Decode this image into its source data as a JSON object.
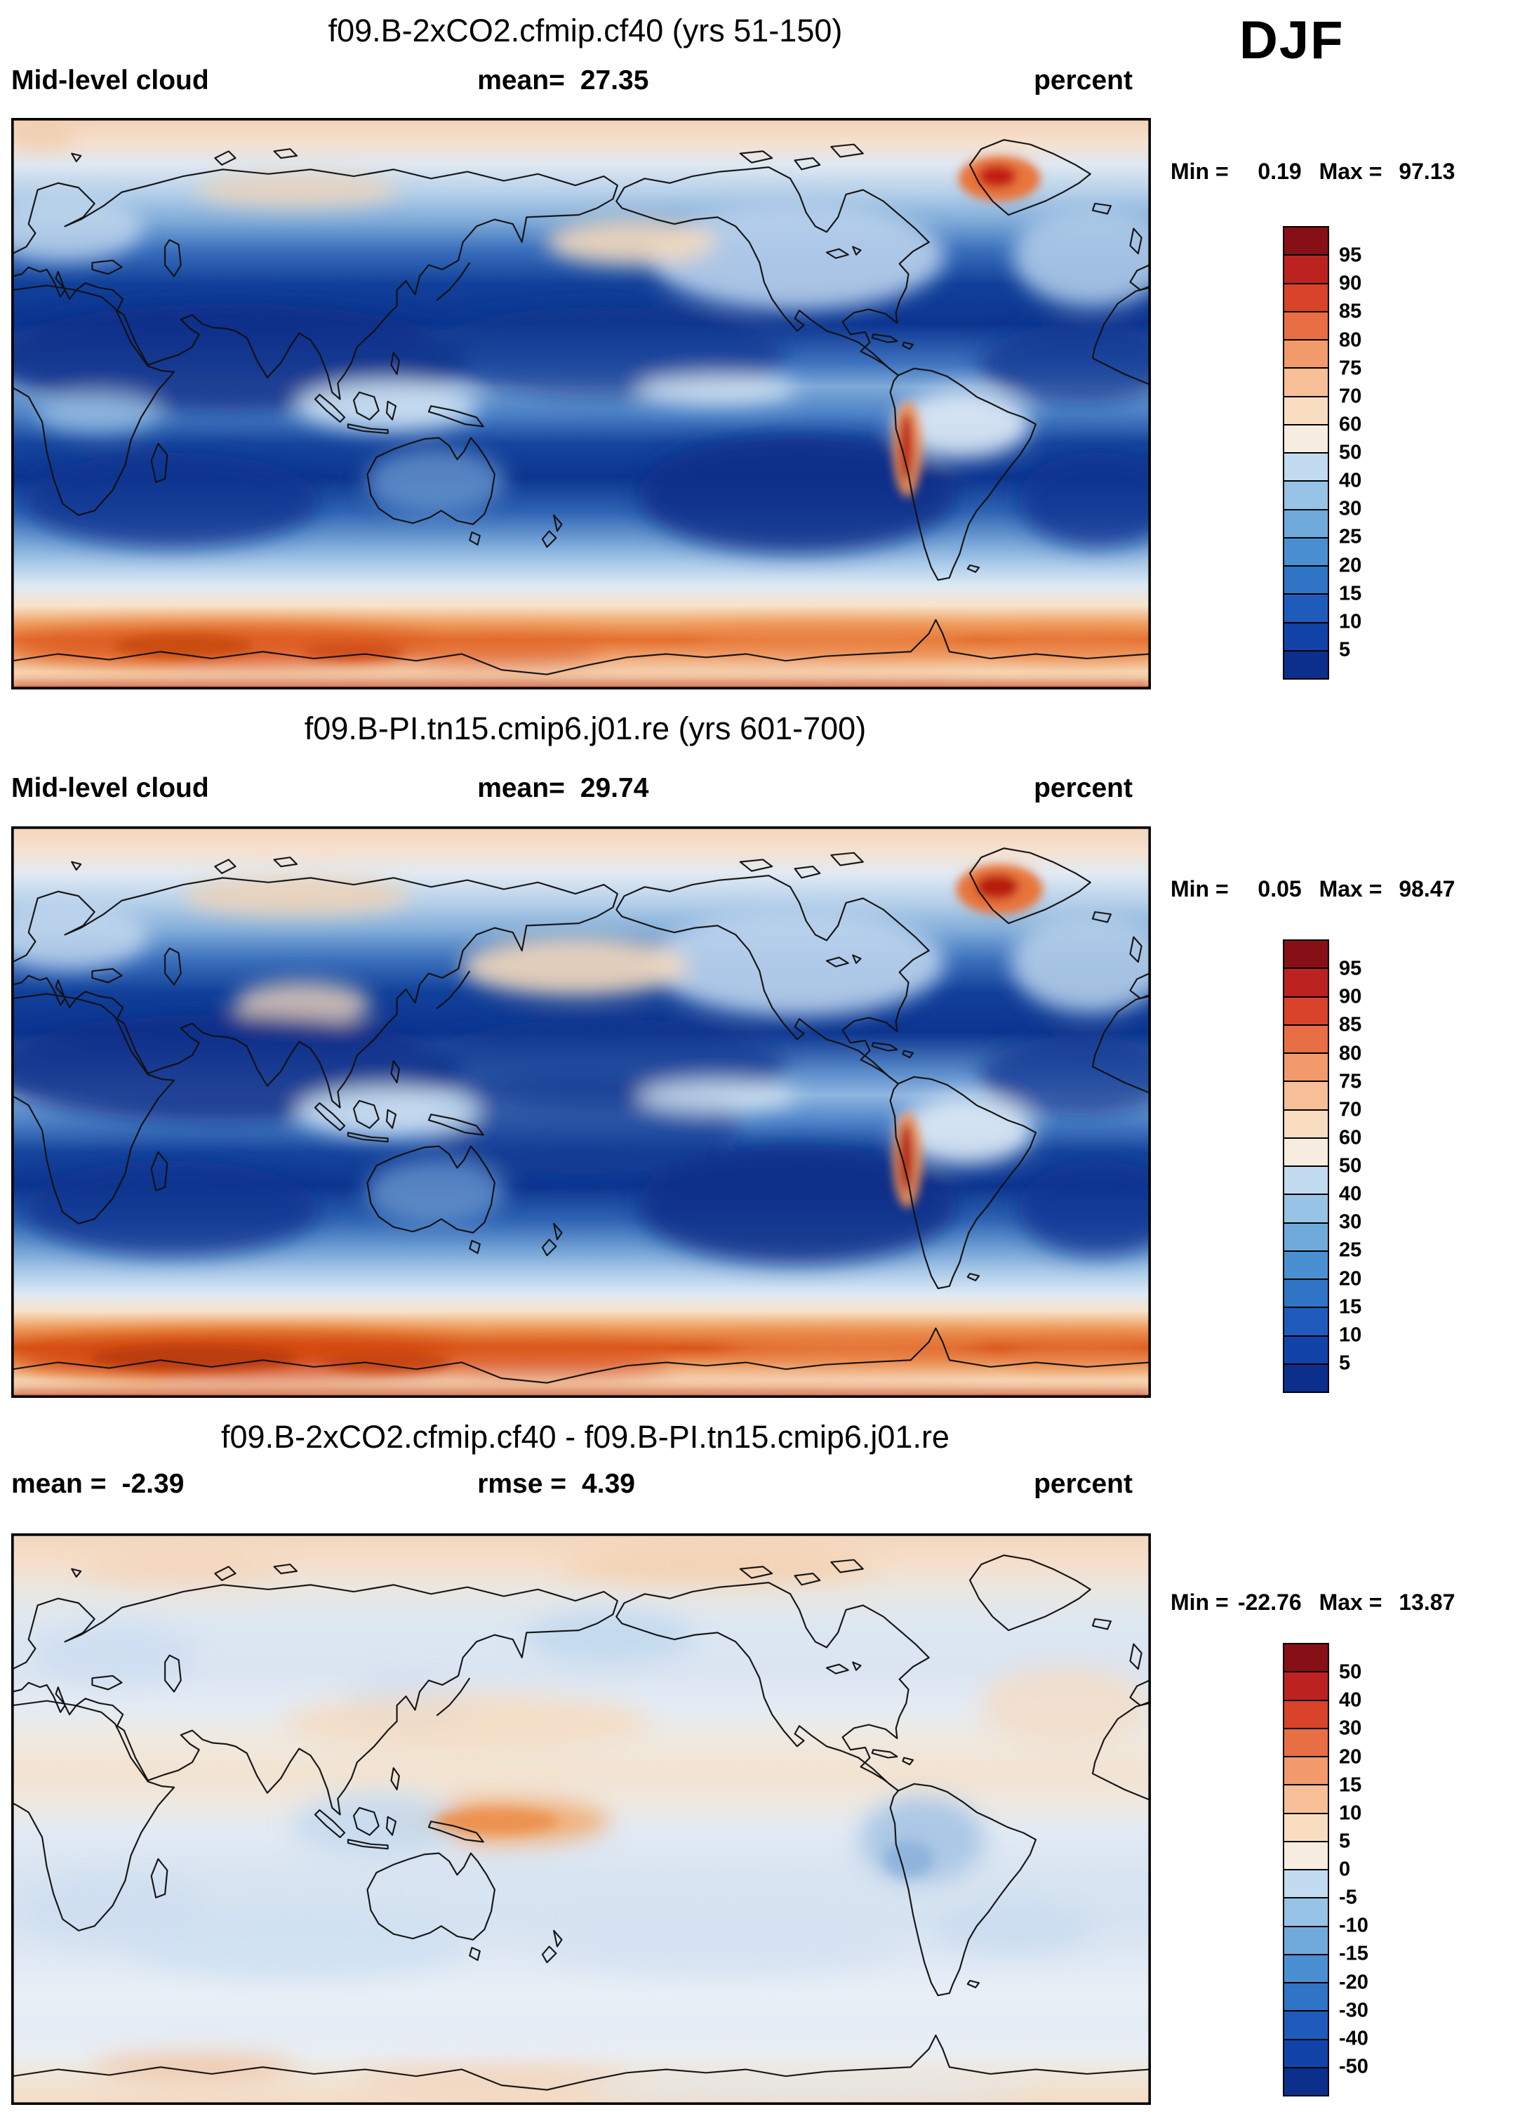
{
  "season": "DJF",
  "palette_bottom_to_top": [
    "#0b2f8a",
    "#1243a8",
    "#1f5bba",
    "#2f74c5",
    "#4a8fd1",
    "#6faadb",
    "#97c4e6",
    "#c2dbf0",
    "#f7ece0",
    "#f9ddc0",
    "#f7bf97",
    "#f29a6b",
    "#e86e43",
    "#d8432a",
    "#bc2320",
    "#871016"
  ],
  "chart_data": [
    {
      "type": "filled-contour-map",
      "title": "f09.B-2xCO2.cfmip.cf40 (yrs 51-150)",
      "variable": "Mid-level cloud",
      "units": "percent",
      "stats": {
        "left_label": "Mid-level cloud",
        "left_value": "",
        "center_label": "mean=",
        "center_value": "27.35"
      },
      "min_label": "Min =",
      "min_value": "0.19",
      "max_label": "Max =",
      "max_value": "97.13",
      "colorbar_ticks": [
        "95",
        "90",
        "85",
        "80",
        "75",
        "70",
        "60",
        "50",
        "40",
        "30",
        "25",
        "20",
        "15",
        "10",
        "5"
      ],
      "contour_levels": [
        5,
        10,
        15,
        20,
        25,
        30,
        40,
        50,
        60,
        70,
        75,
        80,
        85,
        90,
        95
      ]
    },
    {
      "type": "filled-contour-map",
      "title": "f09.B-PI.tn15.cmip6.j01.re (yrs 601-700)",
      "variable": "Mid-level cloud",
      "units": "percent",
      "stats": {
        "left_label": "Mid-level cloud",
        "left_value": "",
        "center_label": "mean=",
        "center_value": "29.74"
      },
      "min_label": "Min =",
      "min_value": "0.05",
      "max_label": "Max =",
      "max_value": "98.47",
      "colorbar_ticks": [
        "95",
        "90",
        "85",
        "80",
        "75",
        "70",
        "60",
        "50",
        "40",
        "30",
        "25",
        "20",
        "15",
        "10",
        "5"
      ],
      "contour_levels": [
        5,
        10,
        15,
        20,
        25,
        30,
        40,
        50,
        60,
        70,
        75,
        80,
        85,
        90,
        95
      ]
    },
    {
      "type": "filled-contour-difference-map",
      "title": "f09.B-2xCO2.cfmip.cf40 - f09.B-PI.tn15.cmip6.j01.re",
      "variable": "Mid-level cloud",
      "units": "percent",
      "stats": {
        "left_label": "mean =",
        "left_value": "-2.39",
        "center_label": "rmse =",
        "center_value": "4.39"
      },
      "min_label": "Min =",
      "min_value": "-22.76",
      "max_label": "Max =",
      "max_value": "13.87",
      "colorbar_ticks": [
        "50",
        "40",
        "30",
        "20",
        "15",
        "10",
        "5",
        "0",
        "-5",
        "-10",
        "-15",
        "-20",
        "-30",
        "-40",
        "-50"
      ],
      "contour_levels": [
        -50,
        -40,
        -30,
        -20,
        -15,
        -10,
        -5,
        0,
        5,
        10,
        15,
        20,
        30,
        40,
        50
      ]
    }
  ]
}
